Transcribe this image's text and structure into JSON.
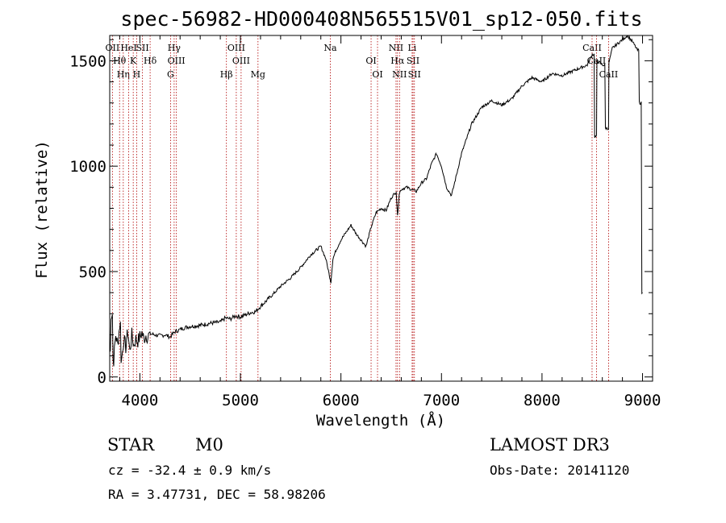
{
  "chart_data": {
    "type": "line",
    "title": "spec-56982-HD000408N565515V01_sp12-050.fits",
    "xlabel": "Wavelength (Å)",
    "ylabel": "Flux (relative)",
    "xlim": [
      3700,
      9100
    ],
    "ylim": [
      -20,
      1620
    ],
    "xticks": [
      4000,
      5000,
      6000,
      7000,
      8000,
      9000
    ],
    "yticks": [
      0,
      500,
      1000,
      1500
    ],
    "grid": false,
    "series": [
      {
        "x": [
          3700,
          3720,
          3740,
          3760,
          3780,
          3800,
          3820,
          3840,
          3860,
          3880,
          3900,
          3920,
          3940,
          3960,
          3980,
          4000,
          4020,
          4040,
          4060,
          4080,
          4100,
          4150,
          4200,
          4250,
          4300,
          4350,
          4400,
          4450,
          4500,
          4600,
          4700,
          4800,
          4850,
          4900,
          4950,
          5000,
          5100,
          5150,
          5200,
          5300,
          5400,
          5500,
          5600,
          5700,
          5800,
          5850,
          5900,
          5920,
          5950,
          6000,
          6100,
          6150,
          6200,
          6250,
          6300,
          6350,
          6400,
          6450,
          6500,
          6550,
          6563,
          6580,
          6600,
          6650,
          6700,
          6750,
          6800,
          6850,
          6900,
          6950,
          7000,
          7050,
          7100,
          7150,
          7200,
          7300,
          7400,
          7500,
          7600,
          7700,
          7800,
          7900,
          8000,
          8100,
          8200,
          8300,
          8400,
          8450,
          8500,
          8542,
          8550,
          8600,
          8662,
          8670,
          8700,
          8750,
          8800,
          8850,
          8900,
          8950,
          8980,
          9000
        ],
        "y": [
          120,
          300,
          80,
          200,
          150,
          250,
          90,
          180,
          140,
          220,
          120,
          200,
          150,
          180,
          170,
          190,
          210,
          180,
          200,
          190,
          205,
          200,
          195,
          200,
          190,
          215,
          225,
          235,
          240,
          245,
          255,
          260,
          280,
          275,
          290,
          285,
          305,
          310,
          335,
          380,
          430,
          470,
          520,
          580,
          620,
          560,
          450,
          560,
          600,
          650,
          720,
          680,
          650,
          620,
          710,
          780,
          800,
          790,
          850,
          880,
          760,
          870,
          890,
          900,
          890,
          880,
          920,
          940,
          1010,
          1060,
          1000,
          900,
          860,
          960,
          1060,
          1200,
          1280,
          1310,
          1290,
          1320,
          1380,
          1420,
          1400,
          1440,
          1430,
          1450,
          1470,
          1480,
          1530,
          1140,
          1500,
          1480,
          1180,
          1500,
          1560,
          1580,
          1600,
          1620,
          1590,
          1550,
          1300,
          400
        ]
      }
    ],
    "line_ids": [
      {
        "wl": 3727,
        "label": "OII"
      },
      {
        "wl": 3798,
        "label": "Hθ"
      },
      {
        "wl": 3835,
        "label": "Hη"
      },
      {
        "wl": 3889,
        "label": "HeI"
      },
      {
        "wl": 3934,
        "label": "K"
      },
      {
        "wl": 3968,
        "label": "H"
      },
      {
        "wl": 4026,
        "label": "SII"
      },
      {
        "wl": 4102,
        "label": "Hδ"
      },
      {
        "wl": 4305,
        "label": "G"
      },
      {
        "wl": 4341,
        "label": "Hγ"
      },
      {
        "wl": 4363,
        "label": "OIII"
      },
      {
        "wl": 4861,
        "label": "Hβ"
      },
      {
        "wl": 4959,
        "label": "OIII"
      },
      {
        "wl": 5007,
        "label": "OIII"
      },
      {
        "wl": 5175,
        "label": "Mg"
      },
      {
        "wl": 5894,
        "label": "Na"
      },
      {
        "wl": 6300,
        "label": "OI"
      },
      {
        "wl": 6364,
        "label": "OI"
      },
      {
        "wl": 6548,
        "label": "NII"
      },
      {
        "wl": 6563,
        "label": "Hα"
      },
      {
        "wl": 6583,
        "label": "NII"
      },
      {
        "wl": 6708,
        "label": "Li"
      },
      {
        "wl": 6717,
        "label": "SII"
      },
      {
        "wl": 6731,
        "label": "SII"
      },
      {
        "wl": 8498,
        "label": "CaII"
      },
      {
        "wl": 8542,
        "label": "CaII"
      },
      {
        "wl": 8662,
        "label": "CaII"
      }
    ]
  },
  "info": {
    "class": "STAR",
    "subclass": "M0",
    "cz": "cz = -32.4 ± 0.9 km/s",
    "coords": "RA =   3.47731, DEC =  58.98206",
    "survey": "LAMOST DR3",
    "obsdate": "Obs-Date: 20141120"
  }
}
